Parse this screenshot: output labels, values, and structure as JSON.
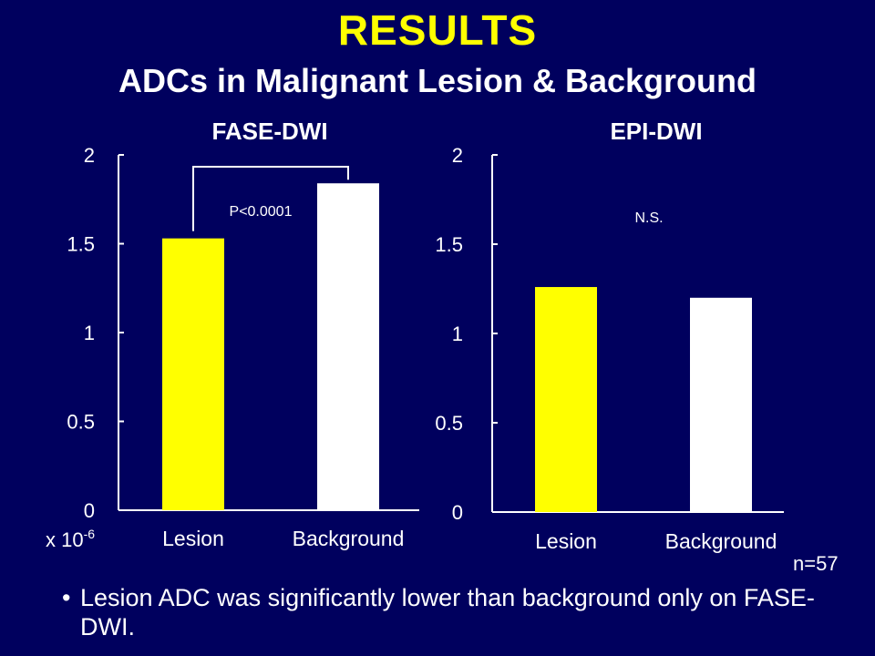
{
  "slide": {
    "title": "RESULTS",
    "subtitle": "ADCs in Malignant Lesion & Background",
    "sample_size": "n=57",
    "bullet_marker": "•",
    "bullet": "Lesion ADC was significantly lower than background only on FASE-DWI."
  },
  "colors": {
    "background": "#00005e",
    "title": "#ffff00",
    "lesion_bar": "#ffff00",
    "background_bar": "#ffffff",
    "text": "#ffffff"
  },
  "chart_data": [
    {
      "type": "bar",
      "title": "FASE-DWI",
      "categories": [
        "Lesion",
        "Background"
      ],
      "values": [
        1.53,
        1.84
      ],
      "ylim": [
        0,
        2
      ],
      "yticks": [
        0,
        0.5,
        1,
        1.5,
        2
      ],
      "ytick_labels": [
        "0",
        "0.5",
        "1",
        "1.5",
        "2"
      ],
      "unit_label_base": "x 10",
      "unit_label_exp": "-6",
      "annotation": "P<0.0001",
      "significance_bracket": true
    },
    {
      "type": "bar",
      "title": "EPI-DWI",
      "categories": [
        "Lesion",
        "Background"
      ],
      "values": [
        1.26,
        1.2
      ],
      "ylim": [
        0,
        2
      ],
      "yticks": [
        0,
        0.5,
        1,
        1.5,
        2
      ],
      "ytick_labels": [
        "0",
        "0.5",
        "1",
        "1.5",
        "2"
      ],
      "annotation": "N.S.",
      "significance_bracket": false
    }
  ]
}
